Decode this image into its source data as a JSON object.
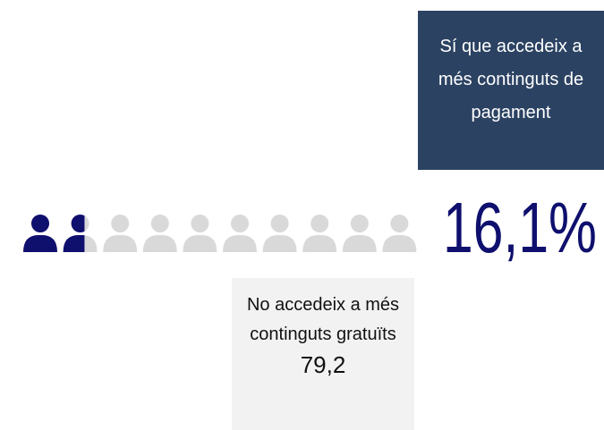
{
  "chart_data": {
    "type": "pictogram",
    "label": "Sí que accedeix a més continguts de pagament",
    "values": [
      16.1
    ],
    "value_labels": [
      "16,1%"
    ],
    "icons": 10,
    "color": "#0f0f6e",
    "empty_color": "#d9d9d9",
    "note": {
      "text": "No accedeix a més continguts gratuïts",
      "values": [
        79.2
      ],
      "value_labels": [
        "79,2"
      ]
    }
  }
}
